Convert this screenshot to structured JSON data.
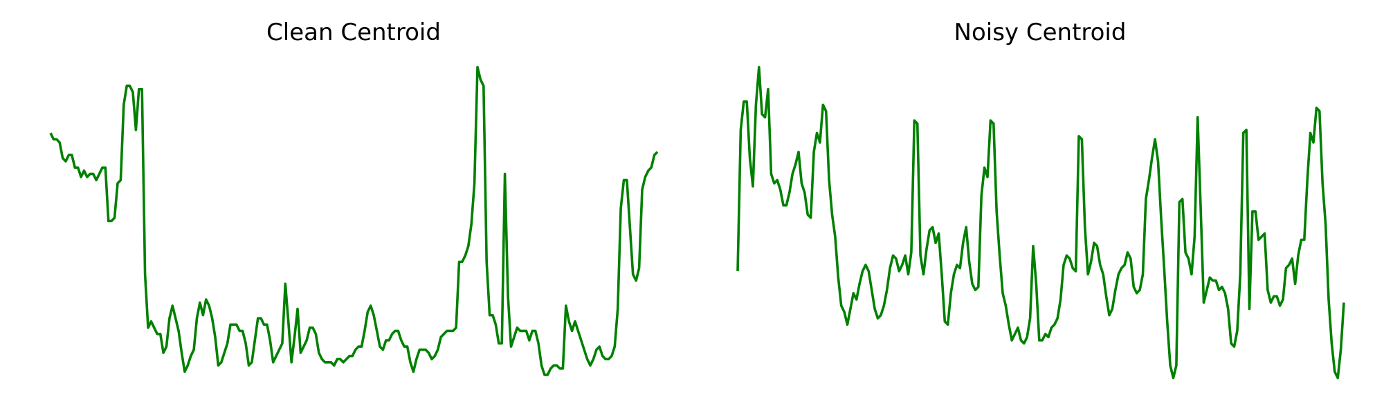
{
  "chart_data": [
    {
      "type": "line",
      "title": "Clean Centroid",
      "xlabel": "",
      "ylabel": "",
      "axes_visible": false,
      "grid": false,
      "color": "#008000",
      "values": [
        0.79,
        0.77,
        0.77,
        0.76,
        0.71,
        0.7,
        0.72,
        0.72,
        0.68,
        0.68,
        0.65,
        0.67,
        0.65,
        0.66,
        0.66,
        0.64,
        0.66,
        0.68,
        0.68,
        0.51,
        0.51,
        0.52,
        0.63,
        0.64,
        0.88,
        0.94,
        0.94,
        0.92,
        0.8,
        0.93,
        0.93,
        0.34,
        0.17,
        0.19,
        0.17,
        0.15,
        0.15,
        0.09,
        0.11,
        0.2,
        0.24,
        0.2,
        0.16,
        0.09,
        0.03,
        0.05,
        0.08,
        0.1,
        0.2,
        0.25,
        0.21,
        0.26,
        0.24,
        0.2,
        0.14,
        0.05,
        0.06,
        0.09,
        0.12,
        0.18,
        0.18,
        0.18,
        0.16,
        0.16,
        0.12,
        0.05,
        0.06,
        0.13,
        0.2,
        0.2,
        0.18,
        0.18,
        0.13,
        0.06,
        0.08,
        0.1,
        0.12,
        0.31,
        0.19,
        0.06,
        0.14,
        0.23,
        0.09,
        0.11,
        0.13,
        0.17,
        0.17,
        0.15,
        0.09,
        0.07,
        0.06,
        0.06,
        0.06,
        0.05,
        0.07,
        0.07,
        0.06,
        0.07,
        0.08,
        0.08,
        0.1,
        0.11,
        0.11,
        0.16,
        0.22,
        0.24,
        0.21,
        0.16,
        0.11,
        0.1,
        0.13,
        0.13,
        0.15,
        0.16,
        0.16,
        0.13,
        0.11,
        0.11,
        0.06,
        0.03,
        0.07,
        0.1,
        0.1,
        0.1,
        0.09,
        0.07,
        0.08,
        0.1,
        0.14,
        0.15,
        0.16,
        0.16,
        0.16,
        0.17,
        0.38,
        0.38,
        0.4,
        0.43,
        0.5,
        0.63,
        1.0,
        0.96,
        0.94,
        0.38,
        0.21,
        0.21,
        0.18,
        0.12,
        0.12,
        0.66,
        0.27,
        0.11,
        0.14,
        0.17,
        0.16,
        0.16,
        0.16,
        0.13,
        0.16,
        0.16,
        0.12,
        0.05,
        0.02,
        0.02,
        0.04,
        0.05,
        0.05,
        0.04,
        0.04,
        0.24,
        0.19,
        0.16,
        0.19,
        0.16,
        0.13,
        0.1,
        0.07,
        0.05,
        0.07,
        0.1,
        0.11,
        0.08,
        0.07,
        0.07,
        0.08,
        0.11,
        0.23,
        0.55,
        0.64,
        0.64,
        0.49,
        0.34,
        0.32,
        0.36,
        0.61,
        0.65,
        0.67,
        0.68,
        0.72,
        0.73
      ]
    },
    {
      "type": "line",
      "title": "Noisy Centroid",
      "xlabel": "",
      "ylabel": "",
      "axes_visible": false,
      "grid": false,
      "color": "#008000",
      "values": [
        0.35,
        0.8,
        0.89,
        0.89,
        0.71,
        0.62,
        0.88,
        1.0,
        0.85,
        0.84,
        0.93,
        0.66,
        0.63,
        0.64,
        0.61,
        0.56,
        0.56,
        0.6,
        0.66,
        0.69,
        0.73,
        0.63,
        0.6,
        0.53,
        0.52,
        0.73,
        0.79,
        0.76,
        0.88,
        0.86,
        0.64,
        0.53,
        0.46,
        0.33,
        0.24,
        0.22,
        0.18,
        0.23,
        0.28,
        0.26,
        0.31,
        0.35,
        0.37,
        0.35,
        0.29,
        0.23,
        0.2,
        0.21,
        0.24,
        0.29,
        0.36,
        0.4,
        0.39,
        0.35,
        0.37,
        0.4,
        0.34,
        0.41,
        0.83,
        0.82,
        0.4,
        0.34,
        0.42,
        0.48,
        0.49,
        0.44,
        0.47,
        0.34,
        0.19,
        0.18,
        0.28,
        0.34,
        0.37,
        0.36,
        0.44,
        0.49,
        0.38,
        0.31,
        0.29,
        0.3,
        0.59,
        0.68,
        0.65,
        0.83,
        0.82,
        0.54,
        0.4,
        0.28,
        0.24,
        0.18,
        0.13,
        0.15,
        0.17,
        0.13,
        0.12,
        0.14,
        0.2,
        0.43,
        0.31,
        0.13,
        0.13,
        0.15,
        0.14,
        0.17,
        0.18,
        0.2,
        0.26,
        0.37,
        0.4,
        0.39,
        0.36,
        0.35,
        0.78,
        0.77,
        0.49,
        0.34,
        0.38,
        0.44,
        0.43,
        0.37,
        0.34,
        0.27,
        0.21,
        0.23,
        0.29,
        0.34,
        0.36,
        0.37,
        0.41,
        0.39,
        0.3,
        0.28,
        0.29,
        0.34,
        0.58,
        0.64,
        0.71,
        0.77,
        0.7,
        0.52,
        0.36,
        0.19,
        0.05,
        0.01,
        0.05,
        0.57,
        0.58,
        0.41,
        0.39,
        0.34,
        0.46,
        0.84,
        0.55,
        0.25,
        0.29,
        0.33,
        0.32,
        0.32,
        0.29,
        0.3,
        0.28,
        0.23,
        0.12,
        0.11,
        0.16,
        0.34,
        0.79,
        0.8,
        0.23,
        0.54,
        0.54,
        0.45,
        0.46,
        0.47,
        0.29,
        0.25,
        0.27,
        0.27,
        0.24,
        0.26,
        0.36,
        0.37,
        0.39,
        0.31,
        0.4,
        0.45,
        0.45,
        0.64,
        0.79,
        0.76,
        0.87,
        0.86,
        0.63,
        0.5,
        0.26,
        0.12,
        0.03,
        0.01,
        0.1,
        0.25
      ]
    }
  ]
}
